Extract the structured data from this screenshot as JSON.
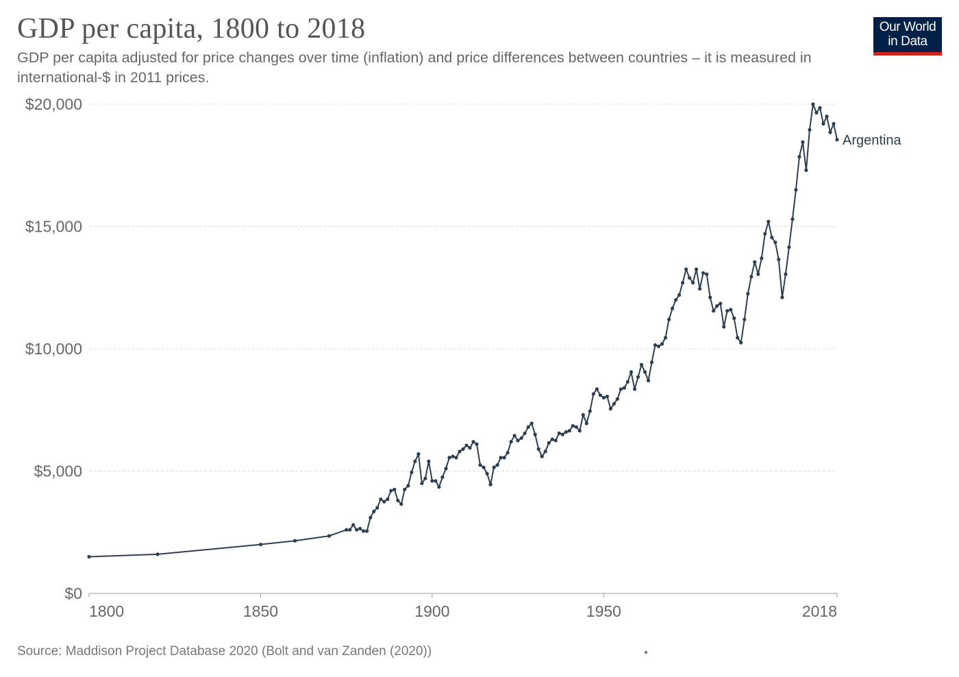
{
  "header": {
    "title": "GDP per capita, 1800 to 2018",
    "subtitle": "GDP per capita adjusted for price changes over time (inflation) and price differences between countries – it is measured in international-$ in 2011 prices."
  },
  "logo": {
    "line1": "Our World",
    "line2": "in Data",
    "bg_color": "#002147",
    "accent_color": "#ce261e"
  },
  "footer": {
    "source": "Source: Maddison Project Database 2020 (Bolt and van Zanden (2020))"
  },
  "chart_data": {
    "type": "line",
    "title": "GDP per capita, 1800 to 2018",
    "xlim": [
      1800,
      2018
    ],
    "ylim": [
      0,
      20000
    ],
    "x_ticks": [
      {
        "value": 1800,
        "label": "1800"
      },
      {
        "value": 1850,
        "label": "1850"
      },
      {
        "value": 1900,
        "label": "1900"
      },
      {
        "value": 1950,
        "label": "1950"
      },
      {
        "value": 2018,
        "label": "2018"
      }
    ],
    "y_ticks": [
      {
        "value": 0,
        "label": "$0"
      },
      {
        "value": 5000,
        "label": "$5,000"
      },
      {
        "value": 10000,
        "label": "$10,000"
      },
      {
        "value": 15000,
        "label": "$15,000"
      },
      {
        "value": 20000,
        "label": "$20,000"
      }
    ],
    "grid": "horizontal dashed",
    "line_color": "#2d3e50",
    "series": [
      {
        "name": "Argentina",
        "x": [
          1800,
          1820,
          1850,
          1860,
          1870,
          1875,
          1876,
          1877,
          1878,
          1879,
          1880,
          1881,
          1882,
          1883,
          1884,
          1885,
          1886,
          1887,
          1888,
          1889,
          1890,
          1891,
          1892,
          1893,
          1894,
          1895,
          1896,
          1897,
          1898,
          1899,
          1900,
          1901,
          1902,
          1903,
          1904,
          1905,
          1906,
          1907,
          1908,
          1909,
          1910,
          1911,
          1912,
          1913,
          1914,
          1915,
          1916,
          1917,
          1918,
          1919,
          1920,
          1921,
          1922,
          1923,
          1924,
          1925,
          1926,
          1927,
          1928,
          1929,
          1930,
          1931,
          1932,
          1933,
          1934,
          1935,
          1936,
          1937,
          1938,
          1939,
          1940,
          1941,
          1942,
          1943,
          1944,
          1945,
          1946,
          1947,
          1948,
          1949,
          1950,
          1951,
          1952,
          1953,
          1954,
          1955,
          1956,
          1957,
          1958,
          1959,
          1960,
          1961,
          1962,
          1963,
          1964,
          1965,
          1966,
          1967,
          1968,
          1969,
          1970,
          1971,
          1972,
          1973,
          1974,
          1975,
          1976,
          1977,
          1978,
          1979,
          1980,
          1981,
          1982,
          1983,
          1984,
          1985,
          1986,
          1987,
          1988,
          1989,
          1990,
          1991,
          1992,
          1993,
          1994,
          1995,
          1996,
          1997,
          1998,
          1999,
          2000,
          2001,
          2002,
          2003,
          2004,
          2005,
          2006,
          2007,
          2008,
          2009,
          2010,
          2011,
          2012,
          2013,
          2014,
          2015,
          2016,
          2017,
          2018
        ],
        "y": [
          1500,
          1600,
          2000,
          2150,
          2350,
          2600,
          2600,
          2800,
          2600,
          2650,
          2550,
          2550,
          3100,
          3350,
          3500,
          3850,
          3750,
          3850,
          4200,
          4250,
          3800,
          3650,
          4250,
          4400,
          4950,
          5400,
          5700,
          4500,
          4700,
          5400,
          4600,
          4600,
          4350,
          4750,
          5100,
          5550,
          5600,
          5550,
          5800,
          5900,
          6050,
          5950,
          6200,
          6100,
          5250,
          5150,
          4900,
          4450,
          5150,
          5250,
          5550,
          5550,
          5750,
          6200,
          6450,
          6250,
          6350,
          6550,
          6800,
          6950,
          6500,
          5900,
          5600,
          5800,
          6150,
          6300,
          6250,
          6550,
          6500,
          6600,
          6650,
          6850,
          6800,
          6650,
          7300,
          6950,
          7450,
          8150,
          8350,
          8100,
          8000,
          8050,
          7550,
          7750,
          7950,
          8350,
          8400,
          8650,
          9050,
          8350,
          8850,
          9350,
          9050,
          8700,
          9450,
          10150,
          10100,
          10200,
          10450,
          11200,
          11650,
          12000,
          12200,
          12700,
          13250,
          12900,
          12700,
          13250,
          12450,
          13100,
          13050,
          12100,
          11550,
          11750,
          11850,
          10900,
          11550,
          11600,
          11250,
          10450,
          10250,
          11200,
          12250,
          12950,
          13550,
          13050,
          13700,
          14700,
          15200,
          14550,
          14350,
          13650,
          12100,
          13050,
          14150,
          15300,
          16500,
          17850,
          18450,
          17300,
          18950,
          20000,
          19650,
          19850,
          19200,
          19500,
          18850,
          19200,
          18550
        ]
      }
    ]
  }
}
